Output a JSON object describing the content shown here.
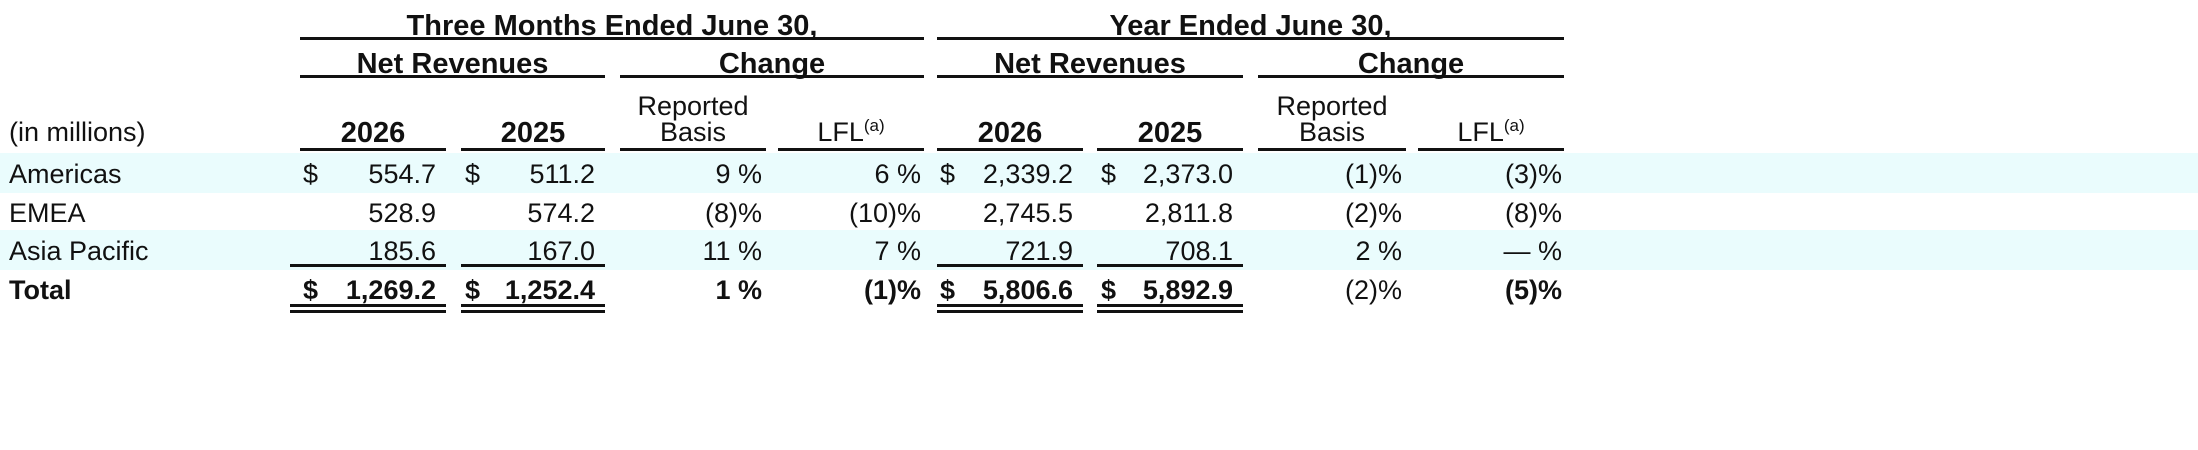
{
  "period_headers": {
    "three_months": "Three Months Ended June 30,",
    "year": "Year Ended June 30,"
  },
  "group_headers": {
    "net_revenues": "Net Revenues",
    "change": "Change"
  },
  "columns": {
    "units": "(in millions)",
    "y2026": "2026",
    "y2025": "2025",
    "reported_line1": "Reported",
    "reported_line2": "Basis",
    "lfl": "LFL",
    "lfl_note": "(a)"
  },
  "currency": "$",
  "rows": [
    {
      "label": "Americas",
      "q2026": "554.7",
      "q2025": "511.2",
      "q_rep": "9 %",
      "q_lfl": "6 %",
      "y2026": "2,339.2",
      "y2025": "2,373.0",
      "y_rep": "(1)%",
      "y_lfl": "(3)%"
    },
    {
      "label": "EMEA",
      "q2026": "528.9",
      "q2025": "574.2",
      "q_rep": "(8)%",
      "q_lfl": "(10)%",
      "y2026": "2,745.5",
      "y2025": "2,811.8",
      "y_rep": "(2)%",
      "y_lfl": "(8)%"
    },
    {
      "label": "Asia Pacific",
      "q2026": "185.6",
      "q2025": "167.0",
      "q_rep": "11 %",
      "q_lfl": "7 %",
      "y2026": "721.9",
      "y2025": "708.1",
      "y_rep": "2 %",
      "y_lfl": "— %"
    },
    {
      "label": "Total",
      "q2026": "1,269.2",
      "q2025": "1,252.4",
      "q_rep": "1 %",
      "q_lfl": "(1)%",
      "y2026": "5,806.6",
      "y2025": "5,892.9",
      "y_rep": "(2)%",
      "y_lfl": "(5)%"
    }
  ]
}
